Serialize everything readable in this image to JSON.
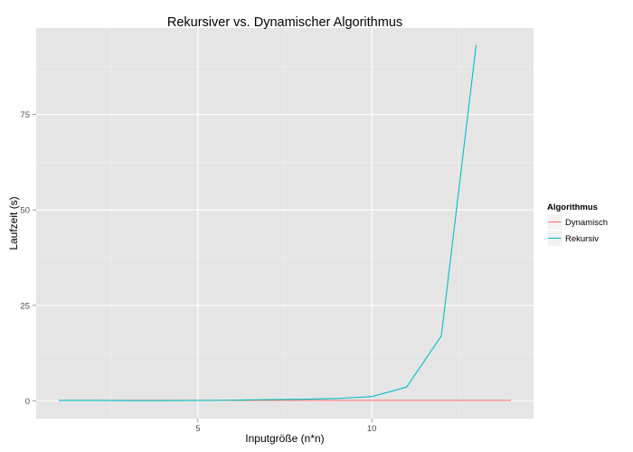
{
  "chart_data": {
    "type": "line",
    "title": "Rekursiver vs. Dynamischer Algorithmus",
    "xlabel": "Inputgröße (n*n)",
    "ylabel": "Laufzeit (s)",
    "xlim": [
      0.35,
      14.65
    ],
    "ylim": [
      -4.65,
      97.65
    ],
    "x_ticks": [
      5,
      10
    ],
    "x_tick_labels": [
      "5",
      "10"
    ],
    "y_ticks": [
      0,
      25,
      50,
      75
    ],
    "y_tick_labels": [
      "0",
      "25",
      "50",
      "75"
    ],
    "grid": true,
    "legend": {
      "title": "Algorithmus",
      "placement": "right"
    },
    "series": [
      {
        "name": "Dynamisch",
        "color": "#F8766D",
        "x": [
          1,
          2,
          3,
          4,
          5,
          6,
          7,
          8,
          9,
          10,
          11,
          12,
          13,
          14
        ],
        "y": [
          0.1,
          0.1,
          0.1,
          0.1,
          0.1,
          0.1,
          0.1,
          0.1,
          0.1,
          0.1,
          0.1,
          0.1,
          0.1,
          0.1
        ]
      },
      {
        "name": "Rekursiv",
        "color": "#00BFC4",
        "x": [
          1,
          2,
          3,
          4,
          5,
          6,
          7,
          8,
          9,
          10,
          11,
          12,
          13
        ],
        "y": [
          0.1,
          0.1,
          0.05,
          0.05,
          0.1,
          0.15,
          0.3,
          0.4,
          0.6,
          1.1,
          3.6,
          17,
          93.2
        ]
      }
    ]
  }
}
